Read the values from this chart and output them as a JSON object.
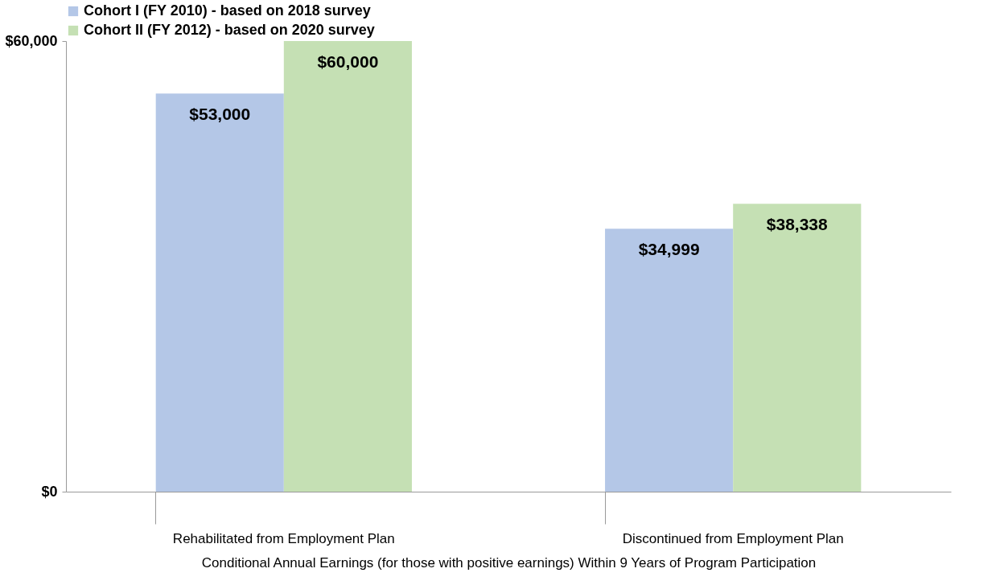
{
  "chart_data": {
    "type": "bar",
    "xlabel": "Conditional Annual Earnings (for those with positive earnings) Within 9 Years of Program Participation",
    "categories": [
      "Rehabilitated from Employment Plan",
      "Discontinued from Employment Plan"
    ],
    "series": [
      {
        "name": "Cohort I (FY 2010) - based on 2018 survey",
        "color": "#b4c7e7",
        "values": [
          53000,
          34999
        ],
        "value_labels": [
          "$53,000",
          "$34,999"
        ]
      },
      {
        "name": "Cohort II (FY 2012) - based on 2020 survey",
        "color": "#c5e0b4",
        "values": [
          60000,
          38338
        ],
        "value_labels": [
          "$60,000",
          "$38,338"
        ]
      }
    ],
    "ylim": [
      0,
      60000
    ],
    "yticks": [
      {
        "value": 0,
        "label": "$0"
      },
      {
        "value": 60000,
        "label": "$60,000"
      }
    ],
    "grid": false,
    "legend": "top"
  }
}
